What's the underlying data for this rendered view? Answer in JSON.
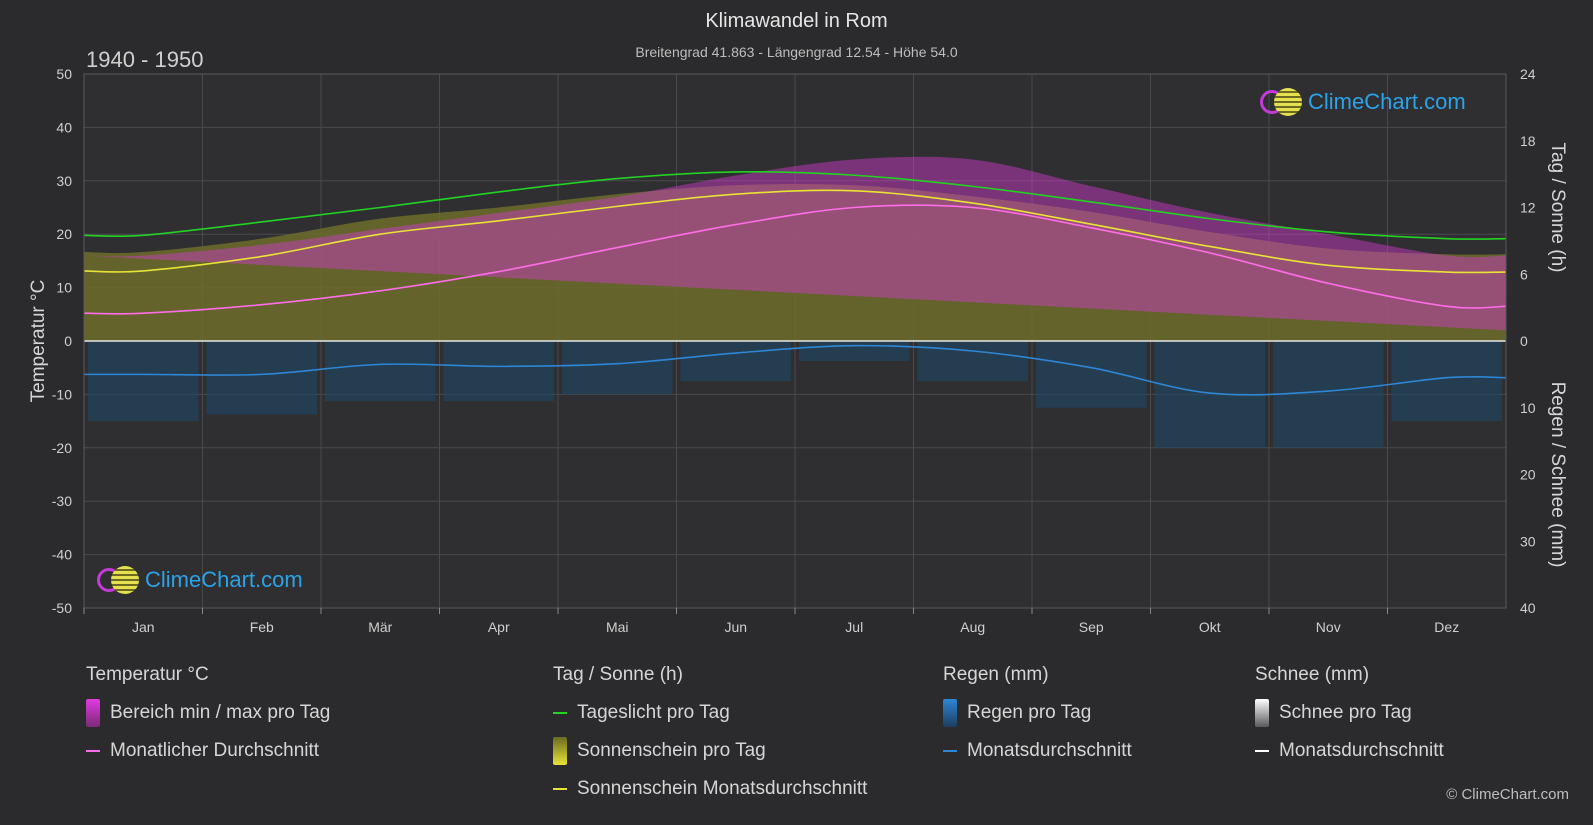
{
  "title": "Klimawandel in Rom",
  "subtitle": "Breitengrad 41.863 - Längengrad 12.54 - Höhe 54.0",
  "period": "1940 - 1950",
  "copyright": "© ClimeChart.com",
  "logo_text": "ClimeChart.com",
  "colors": {
    "background": "#2b2b2d",
    "daylight": "#22d322",
    "sunshine_avg": "#e8e337",
    "temp_avg": "#ff6ce8",
    "temp_range": "#d63ad0",
    "rain": "#2e86d6",
    "snow": "#ffffff",
    "logo": "#2ba3e8"
  },
  "chart_data": {
    "type": "line",
    "title": "Klimawandel in Rom",
    "categories": [
      "Jan",
      "Feb",
      "Mär",
      "Apr",
      "Mai",
      "Jun",
      "Jul",
      "Aug",
      "Sep",
      "Okt",
      "Nov",
      "Dez"
    ],
    "axes": {
      "left": {
        "label": "Temperatur °C",
        "min": -50,
        "max": 50,
        "ticks": [
          50,
          40,
          30,
          20,
          10,
          0,
          -10,
          -20,
          -30,
          -40,
          -50
        ]
      },
      "right_top": {
        "label": "Tag / Sonne (h)",
        "min": 0,
        "max": 24,
        "ticks": [
          24,
          18,
          12,
          6,
          0
        ]
      },
      "right_bottom": {
        "label": "Regen / Schnee (mm)",
        "min": 0,
        "max": 40,
        "ticks": [
          10,
          20,
          30,
          40
        ]
      }
    },
    "grid": true,
    "series": [
      {
        "name": "Tageslicht pro Tag",
        "axis": "hours",
        "values": [
          9.5,
          10.7,
          12.0,
          13.4,
          14.6,
          15.2,
          14.9,
          13.9,
          12.5,
          11.0,
          9.8,
          9.2
        ]
      },
      {
        "name": "Sonnenschein Monatsdurchschnitt",
        "axis": "hours",
        "values": [
          6.3,
          7.6,
          9.6,
          10.8,
          12.1,
          13.2,
          13.5,
          12.4,
          10.5,
          8.5,
          6.8,
          6.2
        ]
      },
      {
        "name": "Sonnenschein pro Tag",
        "axis": "hours",
        "values": [
          8.0,
          9.2,
          11.0,
          12.0,
          13.2,
          14.0,
          14.0,
          13.0,
          11.6,
          9.8,
          8.3,
          7.8
        ]
      },
      {
        "name": "Monatlicher Durchschnitt",
        "axis": "temp",
        "values": [
          5.2,
          6.8,
          9.4,
          13.0,
          17.5,
          21.8,
          25.0,
          25.0,
          21.2,
          16.5,
          10.8,
          6.5
        ]
      },
      {
        "name": "Bereich min / max pro Tag",
        "axis": "temp",
        "min": [
          0,
          1,
          3,
          6,
          10,
          14,
          17,
          17,
          14,
          10,
          6,
          2
        ],
        "max": [
          16,
          18,
          21,
          24,
          27,
          31,
          34,
          34,
          29,
          24,
          20,
          16
        ]
      },
      {
        "name": "Regen Monatsdurchschnitt",
        "axis": "rain",
        "values": [
          5.0,
          5.0,
          3.5,
          3.8,
          3.4,
          1.8,
          0.7,
          1.5,
          4.0,
          7.8,
          7.5,
          5.5
        ]
      },
      {
        "name": "Regen pro Tag",
        "axis": "rain",
        "values": [
          12,
          11,
          9,
          9,
          8,
          6,
          3,
          6,
          10,
          16,
          16,
          12
        ]
      }
    ]
  },
  "legend": {
    "temp": {
      "heading": "Temperatur °C",
      "items": [
        "Bereich min / max pro Tag",
        "Monatlicher Durchschnitt"
      ]
    },
    "sun": {
      "heading": "Tag / Sonne (h)",
      "items": [
        "Tageslicht pro Tag",
        "Sonnenschein pro Tag",
        "Sonnenschein Monatsdurchschnitt"
      ]
    },
    "rain": {
      "heading": "Regen (mm)",
      "items": [
        "Regen pro Tag",
        "Monatsdurchschnitt"
      ]
    },
    "snow": {
      "heading": "Schnee (mm)",
      "items": [
        "Schnee pro Tag",
        "Monatsdurchschnitt"
      ]
    }
  }
}
